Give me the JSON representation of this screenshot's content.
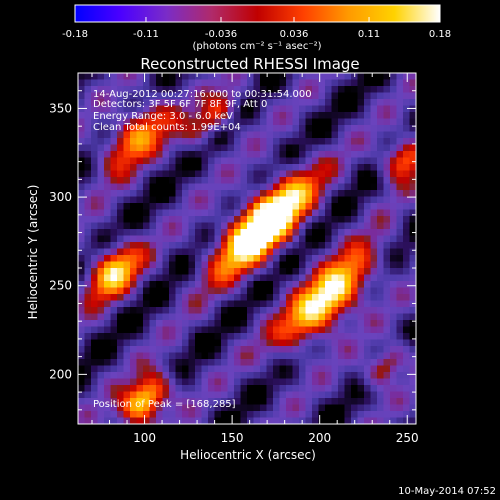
{
  "colorbar": {
    "ticks": [
      "-0.18",
      "-0.11",
      "-0.036",
      "0.036",
      "0.11",
      "0.18"
    ],
    "tick_values": [
      -0.18,
      -0.11,
      -0.036,
      0.036,
      0.11,
      0.18
    ],
    "min": -0.18,
    "max": 0.18,
    "units": "(photons cm⁻² s⁻¹ asec⁻²)",
    "colors": [
      "#0000ff",
      "#4b00ff",
      "#7a2cc8",
      "#b02a6a",
      "#c00000",
      "#ff4000",
      "#ff9a00",
      "#ffd200",
      "#ffffff"
    ]
  },
  "chart_data": {
    "type": "heatmap",
    "title": "Reconstructed RHESSI Image",
    "xlabel": "Heliocentric X (arcsec)",
    "ylabel": "Heliocentric Y (arcsec)",
    "xlim": [
      62,
      255
    ],
    "ylim": [
      172,
      370
    ],
    "xticks": [
      "100",
      "150",
      "200",
      "250"
    ],
    "xtick_values": [
      100,
      150,
      200,
      250
    ],
    "yticks": [
      "200",
      "250",
      "300",
      "350"
    ],
    "ytick_values": [
      200,
      250,
      300,
      350
    ],
    "info_lines": [
      "14-Aug-2012 00:27:16.000 to 00:31:54.000",
      "Detectors: 3F 5F 6F 7F 8F 9F, Att 0",
      "Energy Range: 3.0 - 6.0 keV",
      "Clean    Total counts: 1.99E+04"
    ],
    "peak_label": "Position of Peak = [168,285]",
    "peak": [
      168,
      285
    ],
    "peak_value": 0.18
  },
  "footer": {
    "timestamp": "10-May-2014 07:52"
  }
}
